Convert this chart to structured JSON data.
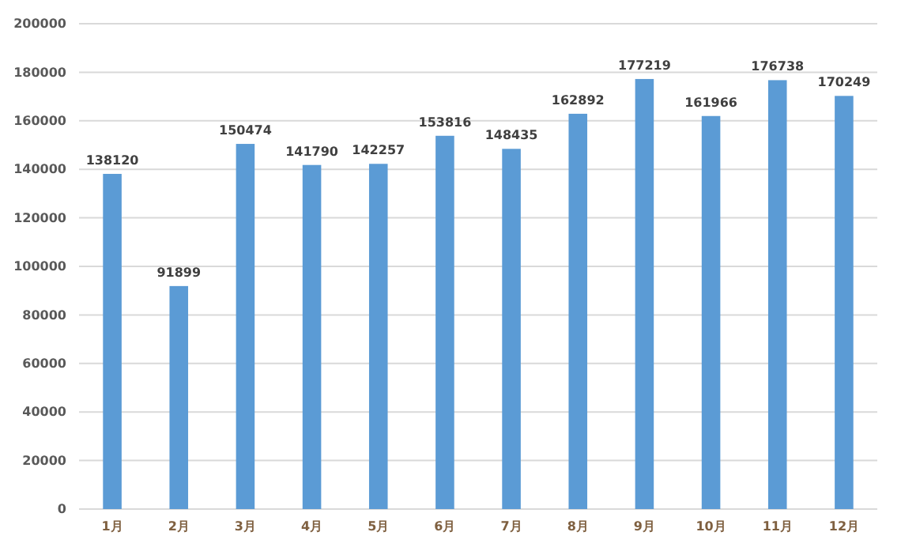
{
  "chart_data": {
    "type": "bar",
    "categories": [
      "1月",
      "2月",
      "3月",
      "4月",
      "5月",
      "6月",
      "7月",
      "8月",
      "9月",
      "10月",
      "11月",
      "12月"
    ],
    "values": [
      138120,
      91899,
      150474,
      141790,
      142257,
      153816,
      148435,
      162892,
      177219,
      161966,
      176738,
      170249
    ],
    "color": "#5b9bd5",
    "ylim": [
      0,
      200000
    ],
    "yticks": [
      0,
      20000,
      40000,
      60000,
      80000,
      100000,
      120000,
      140000,
      160000,
      180000,
      200000
    ],
    "grid": "y",
    "data_labels": true
  }
}
